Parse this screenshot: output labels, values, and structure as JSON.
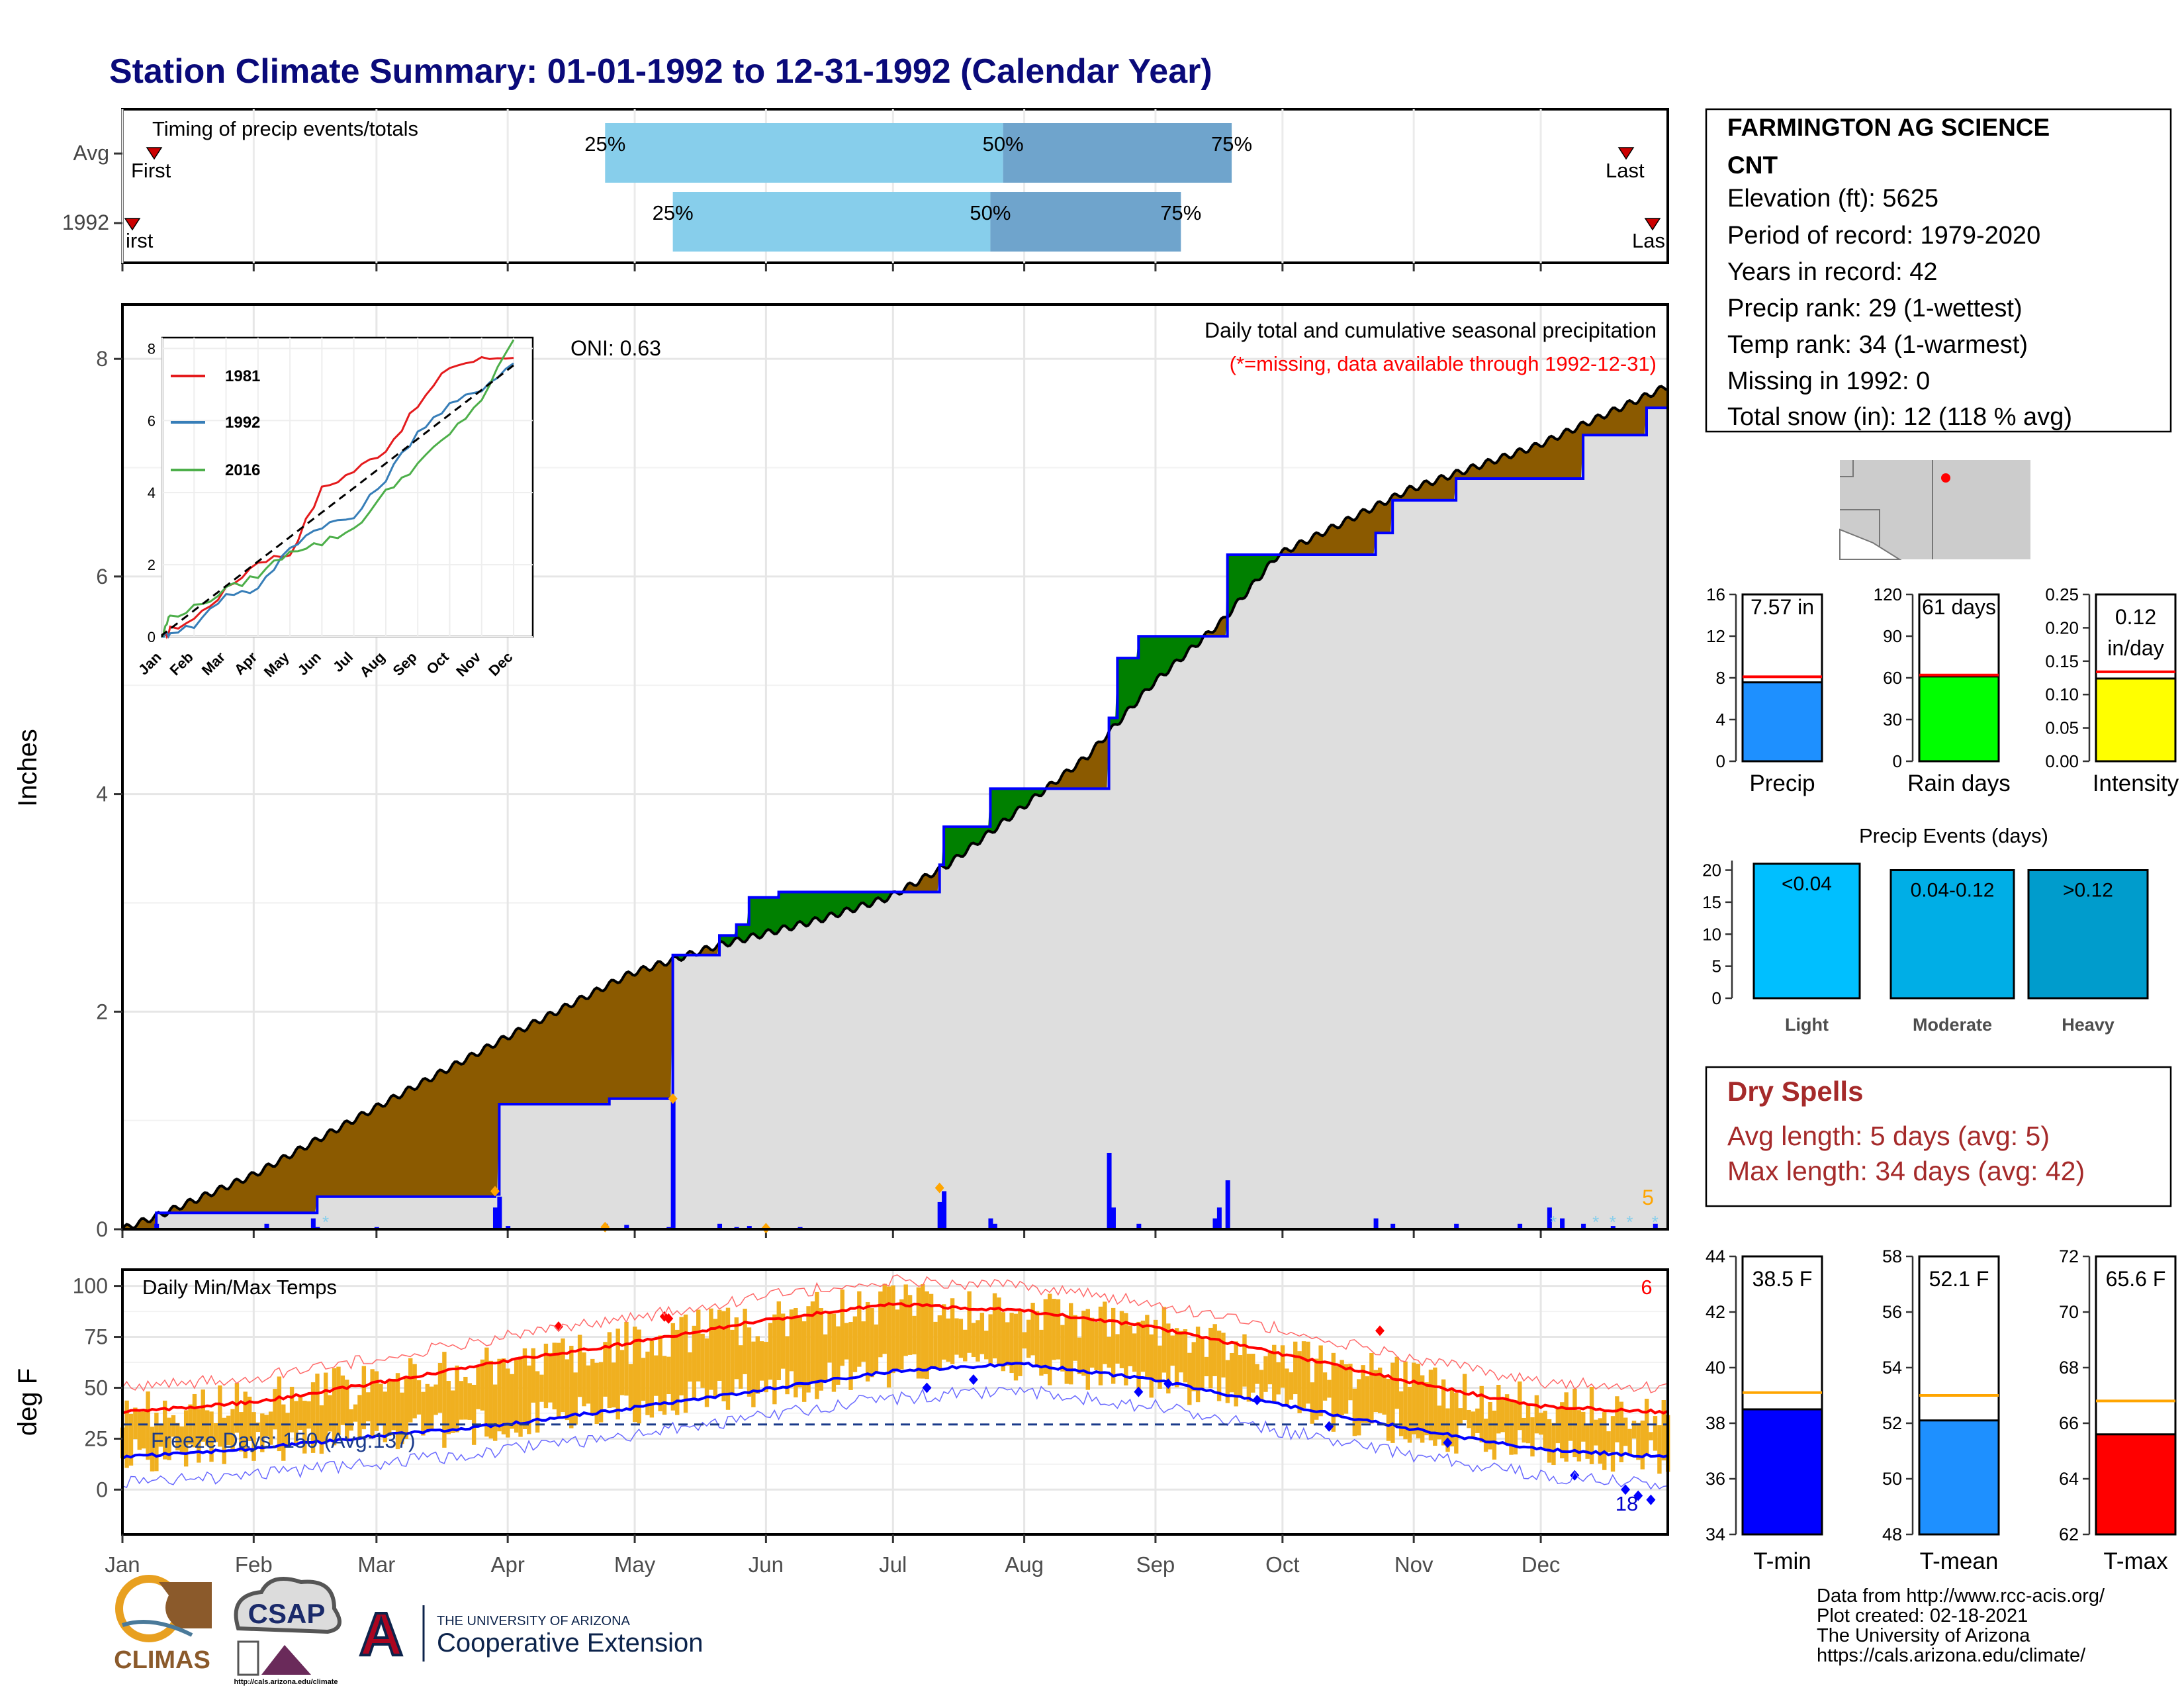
{
  "title": "Station Climate Summary: 01-01-1992 to 12-31-1992 (Calendar Year)",
  "colors": {
    "title": "#0a0a7a",
    "dark_red": "#a52a2a",
    "brown": "#8b5a00",
    "green": "#008000",
    "blue": "#0000ff",
    "gray_fill": "#dedede",
    "orange": "#ffa500",
    "gold": "#f0b020",
    "light_blue": "#87ceeb",
    "mid_blue": "#6fa4cc",
    "red": "#ff0000"
  },
  "timing": {
    "label": "Timing of precip events/totals",
    "rows": [
      "Avg",
      "1992"
    ],
    "first_label": "First",
    "first_label_1992": "irst",
    "last_label": "Last",
    "last_label_1992": "Las",
    "pct_labels": [
      "25%",
      "50%",
      "75%"
    ]
  },
  "station": {
    "name_line1": "FARMINGTON AG SCIENCE",
    "name_line2": "CNT",
    "lines": [
      "Elevation (ft): 5625",
      "Period of record: 1979-2020",
      "Years in record: 42",
      "Precip rank: 29 (1-wettest)",
      "Temp rank: 34 (1-warmest)",
      "Missing in 1992: 0",
      "Total snow (in): 12 (118 % avg)"
    ]
  },
  "precip_panel": {
    "ylabel": "Inches",
    "label": "Daily total and cumulative seasonal precipitation",
    "missing_note": "(*=missing, data available through 1992-12-31)",
    "oni": "ONI: 0.63",
    "corner_count": "5",
    "yticks": [
      "0",
      "2",
      "4",
      "6",
      "8"
    ],
    "months": [
      "Jan",
      "Feb",
      "Mar",
      "Apr",
      "May",
      "Jun",
      "Jul",
      "Aug",
      "Sep",
      "Oct",
      "Nov",
      "Dec"
    ]
  },
  "inset": {
    "legend": [
      "1981",
      "1992",
      "2016"
    ],
    "yticks": [
      "0",
      "2",
      "4",
      "6",
      "8"
    ],
    "months": [
      "Jan",
      "Feb",
      "Mar",
      "Apr",
      "May",
      "Jun",
      "Jul",
      "Aug",
      "Sep",
      "Oct",
      "Nov",
      "Dec"
    ]
  },
  "temp_panel": {
    "ylabel": "deg F",
    "label": "Daily Min/Max Temps",
    "freeze_label": "Freeze Days: 150 (Avg:137)",
    "corner_count": "6",
    "low_count": "18",
    "yticks": [
      "0",
      "25",
      "50",
      "75",
      "100"
    ]
  },
  "summary_bars": [
    {
      "label": "Precip",
      "value_text": "7.57 in",
      "value": 7.57,
      "avg": 8.1,
      "ymax": 16,
      "ticks": [
        "0",
        "4",
        "8",
        "12",
        "16"
      ],
      "color": "#1e90ff"
    },
    {
      "label": "Rain days",
      "value_text": "61 days",
      "value": 61,
      "avg": 62,
      "ymax": 120,
      "ticks": [
        "0",
        "30",
        "60",
        "90",
        "120"
      ],
      "color": "#00ff00"
    },
    {
      "label": "Intensity",
      "value_text": "0.12 in/day",
      "value_line1": "0.12",
      "value_line2": "in/day",
      "value": 0.124,
      "avg": 0.134,
      "ymax": 0.25,
      "ticks": [
        "0.00",
        "0.05",
        "0.10",
        "0.15",
        "0.20",
        "0.25"
      ],
      "color": "#ffff00"
    }
  ],
  "events": {
    "title": "Precip Events (days)",
    "ticks": [
      "0",
      "5",
      "10",
      "15",
      "20"
    ],
    "bars": [
      {
        "label": "Light",
        "range": "<0.04",
        "value": 21,
        "color": "#00bfff"
      },
      {
        "label": "Moderate",
        "range": "0.04-0.12",
        "value": 20,
        "color": "#00aee6"
      },
      {
        "label": "Heavy",
        "range": ">0.12",
        "value": 20,
        "color": "#009ccc"
      }
    ]
  },
  "dry_spells": {
    "title": "Dry Spells",
    "avg_line": "Avg length: 5 days (avg: 5)",
    "max_line": "Max length: 34 days (avg: 42)"
  },
  "temp_bars": [
    {
      "label": "T-min",
      "value_text": "38.5 F",
      "value": 38.5,
      "avg": 39.1,
      "ymin": 34,
      "ymax": 44,
      "ticks": [
        "34",
        "36",
        "38",
        "40",
        "42",
        "44"
      ],
      "color": "#0000ff"
    },
    {
      "label": "T-mean",
      "value_text": "52.1 F",
      "value": 52.1,
      "avg": 53.0,
      "ymin": 48,
      "ymax": 58,
      "ticks": [
        "48",
        "50",
        "52",
        "54",
        "56",
        "58"
      ],
      "color": "#1e90ff"
    },
    {
      "label": "T-max",
      "value_text": "65.6 F",
      "value": 65.6,
      "avg": 66.8,
      "ymin": 62,
      "ymax": 72,
      "ticks": [
        "62",
        "64",
        "66",
        "68",
        "70",
        "72"
      ],
      "color": "#ff0000"
    }
  ],
  "credits": [
    "Data from http://www.rcc-acis.org/",
    "Plot created: 02-18-2021",
    "The University of Arizona",
    "https://cals.arizona.edu/climate/"
  ],
  "logos": {
    "climas": "CLIMAS",
    "csap": "CSAP",
    "csap_url": "http://cals.arizona.edu/climate",
    "ua_line1": "THE UNIVERSITY OF ARIZONA",
    "ua_line2": "Cooperative Extension",
    "ua_letter": "A"
  },
  "chart_data": [
    {
      "type": "bar",
      "name": "timing",
      "rows": [
        "Avg",
        "1992"
      ],
      "quantiles": {
        "Avg": {
          "first": "Jan 10",
          "q25": "Apr 24",
          "q50": "Jul 27",
          "q75": "Sep 19",
          "last": "Dec 20"
        },
        "1992": {
          "first": "Jan 3",
          "q25": "May 10",
          "q50": "Jul 24",
          "q75": "Sep 7",
          "last": "Dec 31"
        }
      }
    },
    {
      "type": "area",
      "name": "cumulative precipitation",
      "x_unit": "day of year",
      "ylim": [
        0,
        8.5
      ],
      "avg_cumulative": [
        [
          0,
          0
        ],
        [
          10,
          0.15
        ],
        [
          31,
          0.5
        ],
        [
          59,
          1.1
        ],
        [
          90,
          1.75
        ],
        [
          120,
          2.35
        ],
        [
          140,
          2.6
        ],
        [
          165,
          2.85
        ],
        [
          181,
          3.05
        ],
        [
          195,
          3.35
        ],
        [
          210,
          3.8
        ],
        [
          228,
          4.35
        ],
        [
          243,
          5.0
        ],
        [
          260,
          5.6
        ],
        [
          273,
          6.2
        ],
        [
          304,
          6.8
        ],
        [
          334,
          7.2
        ],
        [
          365,
          7.75
        ]
      ],
      "obs_cumulative": [
        [
          0,
          0
        ],
        [
          8,
          0.15
        ],
        [
          45,
          0.15
        ],
        [
          46,
          0.3
        ],
        [
          60,
          0.3
        ],
        [
          88,
          0.32
        ],
        [
          89,
          1.15
        ],
        [
          114,
          1.15
        ],
        [
          115,
          1.2
        ],
        [
          129,
          1.2
        ],
        [
          130,
          2.52
        ],
        [
          140,
          2.52
        ],
        [
          141,
          2.7
        ],
        [
          145,
          2.8
        ],
        [
          148,
          3.05
        ],
        [
          155,
          3.1
        ],
        [
          185,
          3.1
        ],
        [
          193,
          3.35
        ],
        [
          194,
          3.7
        ],
        [
          200,
          3.7
        ],
        [
          205,
          4.05
        ],
        [
          220,
          4.05
        ],
        [
          233,
          4.7
        ],
        [
          235,
          5.25
        ],
        [
          240,
          5.45
        ],
        [
          258,
          5.45
        ],
        [
          261,
          6.2
        ],
        [
          295,
          6.2
        ],
        [
          296,
          6.4
        ],
        [
          300,
          6.7
        ],
        [
          310,
          6.7
        ],
        [
          315,
          6.9
        ],
        [
          330,
          6.9
        ],
        [
          345,
          7.3
        ],
        [
          360,
          7.55
        ],
        [
          365,
          7.57
        ]
      ],
      "daily_precip": [
        [
          8,
          0.05
        ],
        [
          34,
          0.05
        ],
        [
          45,
          0.1
        ],
        [
          46,
          0.02
        ],
        [
          60,
          0.02
        ],
        [
          88,
          0.2
        ],
        [
          89,
          0.3
        ],
        [
          91,
          0.03
        ],
        [
          114,
          0.05
        ],
        [
          119,
          0.04
        ],
        [
          129,
          0.02
        ],
        [
          130,
          1.2
        ],
        [
          141,
          0.05
        ],
        [
          145,
          0.02
        ],
        [
          148,
          0.03
        ],
        [
          160,
          0.02
        ],
        [
          193,
          0.25
        ],
        [
          194,
          0.35
        ],
        [
          205,
          0.1
        ],
        [
          206,
          0.05
        ],
        [
          233,
          0.7
        ],
        [
          234,
          0.2
        ],
        [
          240,
          0.05
        ],
        [
          258,
          0.1
        ],
        [
          259,
          0.2
        ],
        [
          261,
          0.45
        ],
        [
          296,
          0.1
        ],
        [
          300,
          0.05
        ],
        [
          315,
          0.05
        ],
        [
          330,
          0.05
        ],
        [
          337,
          0.2
        ],
        [
          340,
          0.1
        ],
        [
          345,
          0.05
        ],
        [
          352,
          0.03
        ],
        [
          362,
          0.05
        ]
      ]
    },
    {
      "type": "line",
      "name": "inset cumulative",
      "x": [
        "Jan",
        "Feb",
        "Mar",
        "Apr",
        "May",
        "Jun",
        "Jul",
        "Aug",
        "Sep",
        "Oct",
        "Nov",
        "Dec"
      ],
      "series": [
        {
          "name": "1981",
          "values": [
            0.1,
            0.5,
            1.3,
            2.1,
            2.3,
            4.1,
            4.6,
            5.2,
            6.4,
            7.5,
            7.7,
            7.8
          ]
        },
        {
          "name": "1992",
          "values": [
            0.1,
            0.3,
            1.2,
            1.3,
            2.5,
            3.1,
            3.3,
            4.4,
            5.7,
            6.4,
            6.9,
            7.6
          ]
        },
        {
          "name": "2016",
          "values": [
            0.5,
            0.8,
            1.3,
            1.7,
            2.4,
            2.6,
            3.0,
            4.0,
            4.8,
            5.6,
            6.6,
            8.2
          ]
        }
      ],
      "ylim": [
        0,
        8
      ]
    },
    {
      "type": "line",
      "name": "daily temperatures",
      "x_unit": "day of year",
      "ylim": [
        -20,
        105
      ],
      "avg_max": [
        [
          0,
          38
        ],
        [
          31,
          43
        ],
        [
          59,
          52
        ],
        [
          90,
          63
        ],
        [
          120,
          72
        ],
        [
          151,
          83
        ],
        [
          181,
          91
        ],
        [
          212,
          88
        ],
        [
          243,
          80
        ],
        [
          273,
          67
        ],
        [
          304,
          53
        ],
        [
          334,
          41
        ],
        [
          365,
          38
        ]
      ],
      "avg_min": [
        [
          0,
          16
        ],
        [
          31,
          20
        ],
        [
          59,
          26
        ],
        [
          90,
          32
        ],
        [
          120,
          40
        ],
        [
          151,
          49
        ],
        [
          181,
          58
        ],
        [
          212,
          62
        ],
        [
          243,
          54
        ],
        [
          273,
          42
        ],
        [
          304,
          30
        ],
        [
          334,
          20
        ],
        [
          365,
          16
        ]
      ],
      "freeze_line": 32
    },
    {
      "type": "bar",
      "name": "season summary",
      "categories": [
        "Precip",
        "Rain days",
        "Intensity"
      ],
      "values": [
        7.57,
        61,
        0.12
      ]
    },
    {
      "type": "bar",
      "name": "precip events",
      "categories": [
        "Light",
        "Moderate",
        "Heavy"
      ],
      "values": [
        21,
        20,
        20
      ]
    },
    {
      "type": "bar",
      "name": "temperature summary",
      "categories": [
        "T-min",
        "T-mean",
        "T-max"
      ],
      "values": [
        38.5,
        52.1,
        65.6
      ]
    }
  ]
}
